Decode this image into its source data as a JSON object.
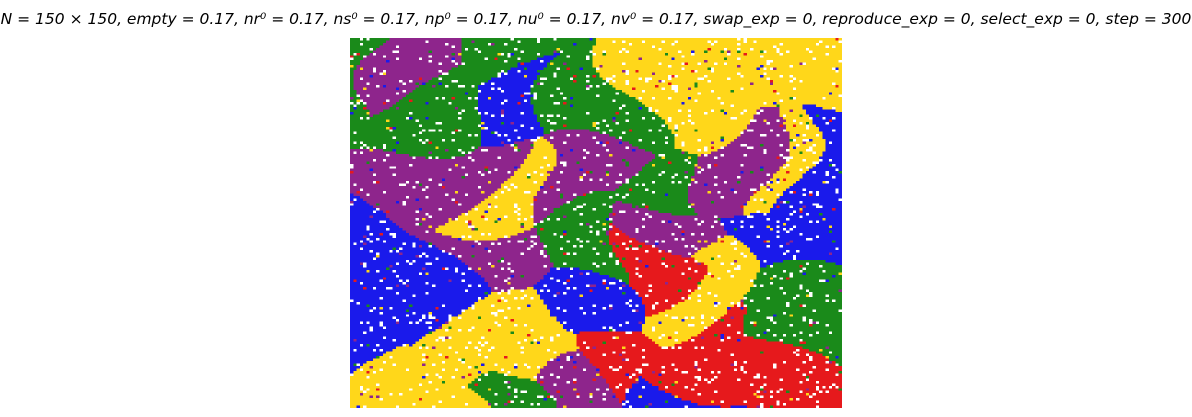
{
  "chart_data": {
    "type": "heatmap",
    "title": "N = 150 × 150, empty = 0.17, nr⁰ = 0.17, ns⁰ = 0.17, np⁰ = 0.17, nu⁰ = 0.17, nv⁰ = 0.17, swap_exp = 0, reproduce_exp = 0, select_exp = 0, step = 300",
    "grid_size": [
      150,
      150
    ],
    "empty": 0.17,
    "initial_densities": {
      "r": 0.17,
      "s": 0.17,
      "p": 0.17,
      "u": 0.17,
      "v": 0.17
    },
    "swap_exp": 0,
    "reproduce_exp": 0,
    "select_exp": 0,
    "step": 300,
    "species_colors": [
      "#e6191c",
      "#1a1aeb",
      "#1a8a1a",
      "#ffd71a",
      "#8e258c"
    ],
    "empty_color": "#ffffff",
    "grid": false,
    "axes": false
  }
}
